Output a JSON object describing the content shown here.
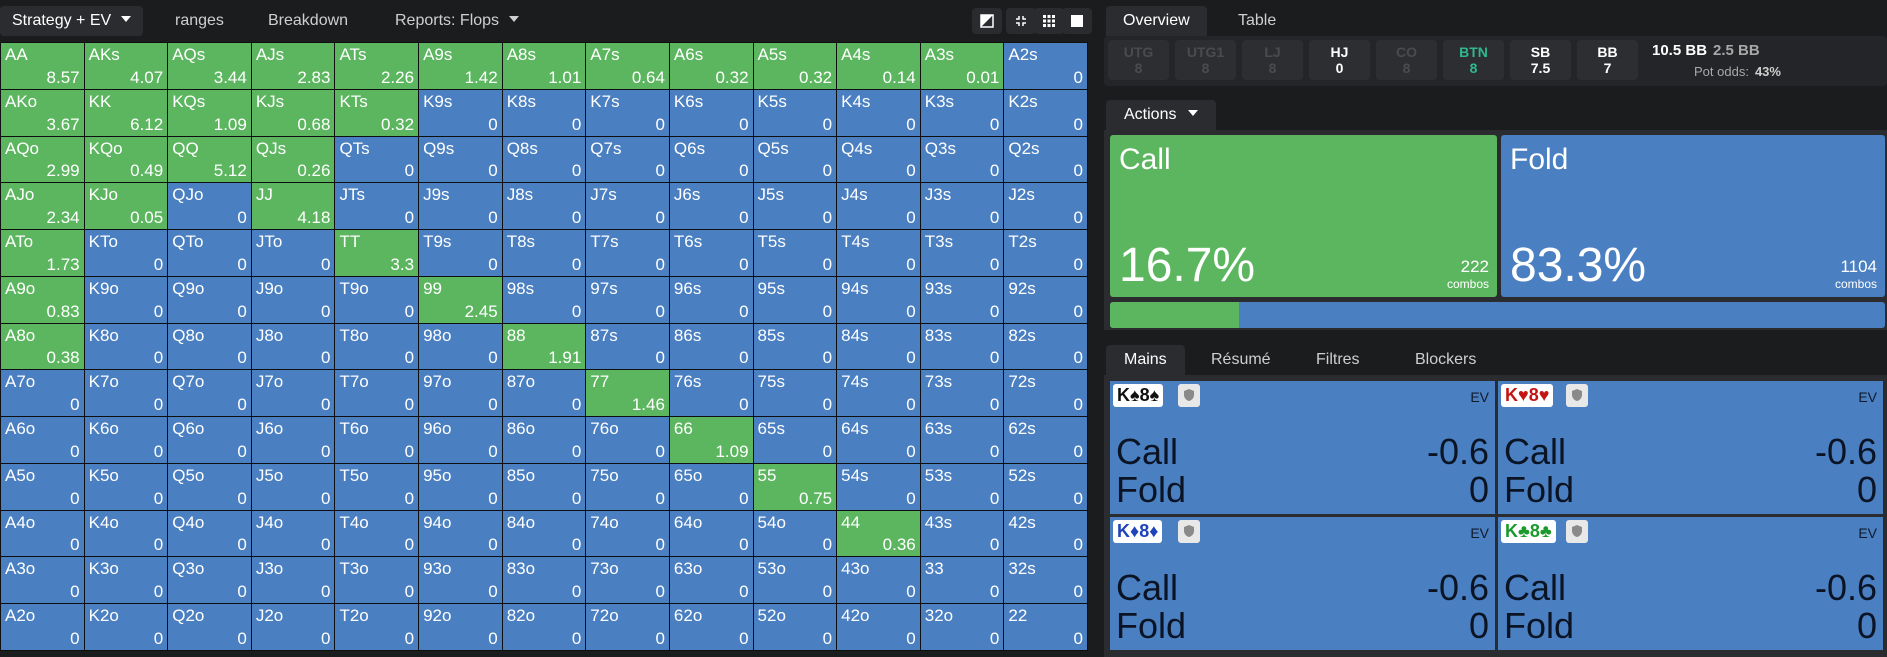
{
  "toolbar": {
    "tabs": [
      {
        "label": "Strategy + EV",
        "dropdown": true,
        "active": true
      },
      {
        "label": "ranges"
      },
      {
        "label": "Breakdown"
      },
      {
        "label": "Reports: Flops",
        "dropdown": true
      }
    ],
    "icons": [
      "contrast-icon",
      "compress-icon",
      "grid-view-icon",
      "square-view-icon"
    ]
  },
  "grid": {
    "colors": {
      "green": "#5cb65f",
      "blue": "#4a7fc1"
    },
    "rows": [
      [
        [
          "AA",
          "8.57",
          "g"
        ],
        [
          "AKs",
          "4.07",
          "g"
        ],
        [
          "AQs",
          "3.44",
          "g"
        ],
        [
          "AJs",
          "2.83",
          "g"
        ],
        [
          "ATs",
          "2.26",
          "g"
        ],
        [
          "A9s",
          "1.42",
          "g"
        ],
        [
          "A8s",
          "1.01",
          "g"
        ],
        [
          "A7s",
          "0.64",
          "g"
        ],
        [
          "A6s",
          "0.32",
          "g"
        ],
        [
          "A5s",
          "0.32",
          "g"
        ],
        [
          "A4s",
          "0.14",
          "g"
        ],
        [
          "A3s",
          "0.01",
          "g"
        ],
        [
          "A2s",
          "0",
          "b"
        ]
      ],
      [
        [
          "AKo",
          "3.67",
          "g"
        ],
        [
          "KK",
          "6.12",
          "g"
        ],
        [
          "KQs",
          "1.09",
          "g"
        ],
        [
          "KJs",
          "0.68",
          "g"
        ],
        [
          "KTs",
          "0.32",
          "g"
        ],
        [
          "K9s",
          "0",
          "b"
        ],
        [
          "K8s",
          "0",
          "b"
        ],
        [
          "K7s",
          "0",
          "b"
        ],
        [
          "K6s",
          "0",
          "b"
        ],
        [
          "K5s",
          "0",
          "b"
        ],
        [
          "K4s",
          "0",
          "b"
        ],
        [
          "K3s",
          "0",
          "b"
        ],
        [
          "K2s",
          "0",
          "b"
        ]
      ],
      [
        [
          "AQo",
          "2.99",
          "g"
        ],
        [
          "KQo",
          "0.49",
          "g"
        ],
        [
          "QQ",
          "5.12",
          "g"
        ],
        [
          "QJs",
          "0.26",
          "g"
        ],
        [
          "QTs",
          "0",
          "b"
        ],
        [
          "Q9s",
          "0",
          "b"
        ],
        [
          "Q8s",
          "0",
          "b"
        ],
        [
          "Q7s",
          "0",
          "b"
        ],
        [
          "Q6s",
          "0",
          "b"
        ],
        [
          "Q5s",
          "0",
          "b"
        ],
        [
          "Q4s",
          "0",
          "b"
        ],
        [
          "Q3s",
          "0",
          "b"
        ],
        [
          "Q2s",
          "0",
          "b"
        ]
      ],
      [
        [
          "AJo",
          "2.34",
          "g"
        ],
        [
          "KJo",
          "0.05",
          "g"
        ],
        [
          "QJo",
          "0",
          "b"
        ],
        [
          "JJ",
          "4.18",
          "g"
        ],
        [
          "JTs",
          "0",
          "b"
        ],
        [
          "J9s",
          "0",
          "b"
        ],
        [
          "J8s",
          "0",
          "b"
        ],
        [
          "J7s",
          "0",
          "b"
        ],
        [
          "J6s",
          "0",
          "b"
        ],
        [
          "J5s",
          "0",
          "b"
        ],
        [
          "J4s",
          "0",
          "b"
        ],
        [
          "J3s",
          "0",
          "b"
        ],
        [
          "J2s",
          "0",
          "b"
        ]
      ],
      [
        [
          "ATo",
          "1.73",
          "g"
        ],
        [
          "KTo",
          "0",
          "b"
        ],
        [
          "QTo",
          "0",
          "b"
        ],
        [
          "JTo",
          "0",
          "b"
        ],
        [
          "TT",
          "3.3",
          "g"
        ],
        [
          "T9s",
          "0",
          "b"
        ],
        [
          "T8s",
          "0",
          "b"
        ],
        [
          "T7s",
          "0",
          "b"
        ],
        [
          "T6s",
          "0",
          "b"
        ],
        [
          "T5s",
          "0",
          "b"
        ],
        [
          "T4s",
          "0",
          "b"
        ],
        [
          "T3s",
          "0",
          "b"
        ],
        [
          "T2s",
          "0",
          "b"
        ]
      ],
      [
        [
          "A9o",
          "0.83",
          "g"
        ],
        [
          "K9o",
          "0",
          "b"
        ],
        [
          "Q9o",
          "0",
          "b"
        ],
        [
          "J9o",
          "0",
          "b"
        ],
        [
          "T9o",
          "0",
          "b"
        ],
        [
          "99",
          "2.45",
          "g"
        ],
        [
          "98s",
          "0",
          "b"
        ],
        [
          "97s",
          "0",
          "b"
        ],
        [
          "96s",
          "0",
          "b"
        ],
        [
          "95s",
          "0",
          "b"
        ],
        [
          "94s",
          "0",
          "b"
        ],
        [
          "93s",
          "0",
          "b"
        ],
        [
          "92s",
          "0",
          "b"
        ]
      ],
      [
        [
          "A8o",
          "0.38",
          "g"
        ],
        [
          "K8o",
          "0",
          "b"
        ],
        [
          "Q8o",
          "0",
          "b"
        ],
        [
          "J8o",
          "0",
          "b"
        ],
        [
          "T8o",
          "0",
          "b"
        ],
        [
          "98o",
          "0",
          "b"
        ],
        [
          "88",
          "1.91",
          "g"
        ],
        [
          "87s",
          "0",
          "b"
        ],
        [
          "86s",
          "0",
          "b"
        ],
        [
          "85s",
          "0",
          "b"
        ],
        [
          "84s",
          "0",
          "b"
        ],
        [
          "83s",
          "0",
          "b"
        ],
        [
          "82s",
          "0",
          "b"
        ]
      ],
      [
        [
          "A7o",
          "0",
          "b"
        ],
        [
          "K7o",
          "0",
          "b"
        ],
        [
          "Q7o",
          "0",
          "b"
        ],
        [
          "J7o",
          "0",
          "b"
        ],
        [
          "T7o",
          "0",
          "b"
        ],
        [
          "97o",
          "0",
          "b"
        ],
        [
          "87o",
          "0",
          "b"
        ],
        [
          "77",
          "1.46",
          "g"
        ],
        [
          "76s",
          "0",
          "b"
        ],
        [
          "75s",
          "0",
          "b"
        ],
        [
          "74s",
          "0",
          "b"
        ],
        [
          "73s",
          "0",
          "b"
        ],
        [
          "72s",
          "0",
          "b"
        ]
      ],
      [
        [
          "A6o",
          "0",
          "b"
        ],
        [
          "K6o",
          "0",
          "b"
        ],
        [
          "Q6o",
          "0",
          "b"
        ],
        [
          "J6o",
          "0",
          "b"
        ],
        [
          "T6o",
          "0",
          "b"
        ],
        [
          "96o",
          "0",
          "b"
        ],
        [
          "86o",
          "0",
          "b"
        ],
        [
          "76o",
          "0",
          "b"
        ],
        [
          "66",
          "1.09",
          "g"
        ],
        [
          "65s",
          "0",
          "b"
        ],
        [
          "64s",
          "0",
          "b"
        ],
        [
          "63s",
          "0",
          "b"
        ],
        [
          "62s",
          "0",
          "b"
        ]
      ],
      [
        [
          "A5o",
          "0",
          "b"
        ],
        [
          "K5o",
          "0",
          "b"
        ],
        [
          "Q5o",
          "0",
          "b"
        ],
        [
          "J5o",
          "0",
          "b"
        ],
        [
          "T5o",
          "0",
          "b"
        ],
        [
          "95o",
          "0",
          "b"
        ],
        [
          "85o",
          "0",
          "b"
        ],
        [
          "75o",
          "0",
          "b"
        ],
        [
          "65o",
          "0",
          "b"
        ],
        [
          "55",
          "0.75",
          "g"
        ],
        [
          "54s",
          "0",
          "b"
        ],
        [
          "53s",
          "0",
          "b"
        ],
        [
          "52s",
          "0",
          "b"
        ]
      ],
      [
        [
          "A4o",
          "0",
          "b"
        ],
        [
          "K4o",
          "0",
          "b"
        ],
        [
          "Q4o",
          "0",
          "b"
        ],
        [
          "J4o",
          "0",
          "b"
        ],
        [
          "T4o",
          "0",
          "b"
        ],
        [
          "94o",
          "0",
          "b"
        ],
        [
          "84o",
          "0",
          "b"
        ],
        [
          "74o",
          "0",
          "b"
        ],
        [
          "64o",
          "0",
          "b"
        ],
        [
          "54o",
          "0",
          "b"
        ],
        [
          "44",
          "0.36",
          "g"
        ],
        [
          "43s",
          "0",
          "b"
        ],
        [
          "42s",
          "0",
          "b"
        ]
      ],
      [
        [
          "A3o",
          "0",
          "b"
        ],
        [
          "K3o",
          "0",
          "b"
        ],
        [
          "Q3o",
          "0",
          "b"
        ],
        [
          "J3o",
          "0",
          "b"
        ],
        [
          "T3o",
          "0",
          "b"
        ],
        [
          "93o",
          "0",
          "b"
        ],
        [
          "83o",
          "0",
          "b"
        ],
        [
          "73o",
          "0",
          "b"
        ],
        [
          "63o",
          "0",
          "b"
        ],
        [
          "53o",
          "0",
          "b"
        ],
        [
          "43o",
          "0",
          "b"
        ],
        [
          "33",
          "0",
          "b"
        ],
        [
          "32s",
          "0",
          "b"
        ]
      ],
      [
        [
          "A2o",
          "0",
          "b"
        ],
        [
          "K2o",
          "0",
          "b"
        ],
        [
          "Q2o",
          "0",
          "b"
        ],
        [
          "J2o",
          "0",
          "b"
        ],
        [
          "T2o",
          "0",
          "b"
        ],
        [
          "92o",
          "0",
          "b"
        ],
        [
          "82o",
          "0",
          "b"
        ],
        [
          "72o",
          "0",
          "b"
        ],
        [
          "62o",
          "0",
          "b"
        ],
        [
          "52o",
          "0",
          "b"
        ],
        [
          "42o",
          "0",
          "b"
        ],
        [
          "32o",
          "0",
          "b"
        ],
        [
          "22",
          "0",
          "b"
        ]
      ]
    ]
  },
  "right_tabs": [
    {
      "label": "Overview",
      "active": true
    },
    {
      "label": "Table"
    }
  ],
  "positions": [
    {
      "name": "UTG",
      "value": "8",
      "state": "dim"
    },
    {
      "name": "UTG1",
      "value": "8",
      "state": "dim"
    },
    {
      "name": "LJ",
      "value": "8",
      "state": "dim"
    },
    {
      "name": "HJ",
      "value": "0",
      "state": "norm"
    },
    {
      "name": "CO",
      "value": "8",
      "state": "dim"
    },
    {
      "name": "BTN",
      "value": "8",
      "state": "btn"
    },
    {
      "name": "SB",
      "value": "7.5",
      "state": "norm"
    },
    {
      "name": "BB",
      "value": "7",
      "state": "norm"
    }
  ],
  "stack": {
    "main": "10.5 BB",
    "secondary": "2.5 BB",
    "pot_odds_label": "Pot odds:",
    "pot_odds_value": "43%"
  },
  "actions": {
    "tab_label": "Actions",
    "call": {
      "name": "Call",
      "pct": "16.7%",
      "combos": "222",
      "combos_label": "combos"
    },
    "fold": {
      "name": "Fold",
      "pct": "83.3%",
      "combos": "1104",
      "combos_label": "combos"
    },
    "call_fraction": 0.167
  },
  "hand_tabs": [
    {
      "label": "Mains",
      "active": true
    },
    {
      "label": "Résumé"
    },
    {
      "label": "Filtres"
    },
    {
      "label": "Blockers"
    }
  ],
  "hand_cards": [
    {
      "rank1": "K",
      "suit1": "♠",
      "rank2": "8",
      "suit2": "♠",
      "suit_class": "black",
      "ev_label": "EV",
      "call_label": "Call",
      "call_ev": "-0.6",
      "fold_label": "Fold",
      "fold_ev": "0"
    },
    {
      "rank1": "K",
      "suit1": "♥",
      "rank2": "8",
      "suit2": "♥",
      "suit_class": "red",
      "ev_label": "EV",
      "call_label": "Call",
      "call_ev": "-0.6",
      "fold_label": "Fold",
      "fold_ev": "0"
    },
    {
      "rank1": "K",
      "suit1": "♦",
      "rank2": "8",
      "suit2": "♦",
      "suit_class": "blue-s",
      "ev_label": "EV",
      "call_label": "Call",
      "call_ev": "-0.6",
      "fold_label": "Fold",
      "fold_ev": "0"
    },
    {
      "rank1": "K",
      "suit1": "♣",
      "rank2": "8",
      "suit2": "♣",
      "suit_class": "green-s",
      "ev_label": "EV",
      "call_label": "Call",
      "call_ev": "-0.6",
      "fold_label": "Fold",
      "fold_ev": "0"
    }
  ]
}
